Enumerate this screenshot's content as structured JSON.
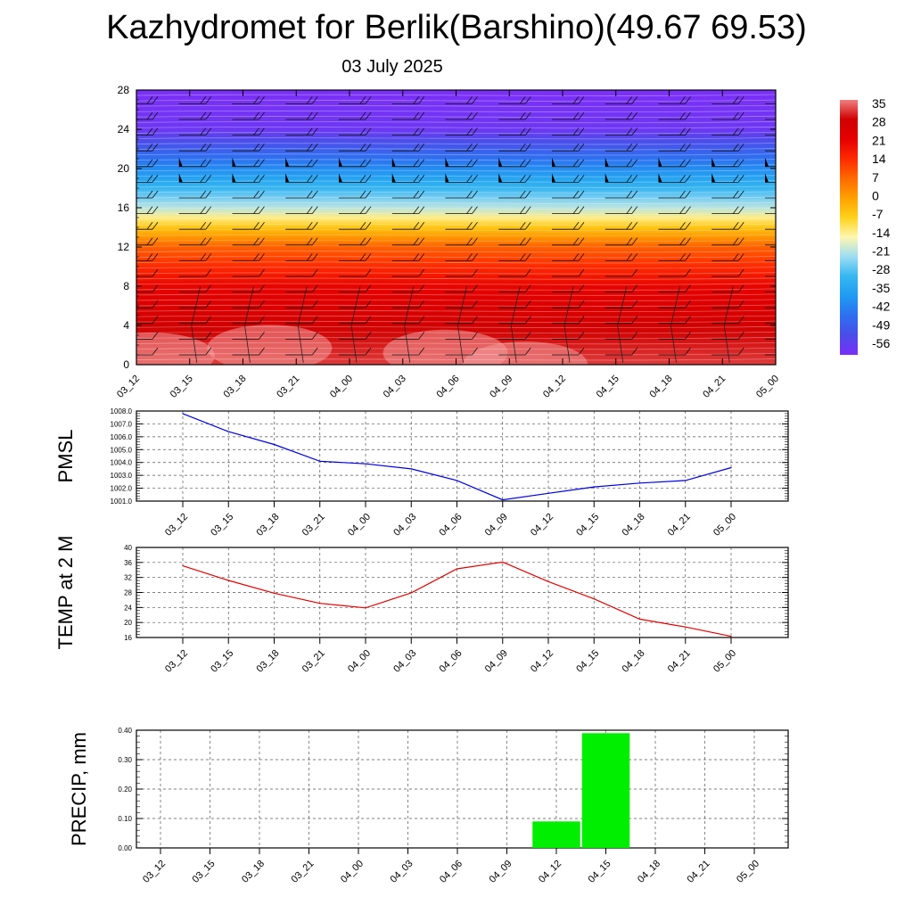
{
  "header": {
    "title": "Kazhydromet for Berlik(Barshino)(49.67 69.53)",
    "date": "03 July 2025"
  },
  "chart_data": [
    {
      "type": "heatmap",
      "name": "cross-section",
      "x": [
        "03_12",
        "03_15",
        "03_18",
        "03_21",
        "04_00",
        "04_03",
        "04_06",
        "04_09",
        "04_12",
        "04_15",
        "04_18",
        "04_21",
        "05_00"
      ],
      "y_ticks": [
        0,
        4,
        8,
        12,
        16,
        20,
        24,
        28
      ],
      "ylim": [
        0,
        28
      ],
      "colorbar": {
        "labels": [
          "35",
          "28",
          "21",
          "14",
          "7",
          "0",
          "-7",
          "-14",
          "-21",
          "-28",
          "-35",
          "-42",
          "-49",
          "-56"
        ],
        "min": -60,
        "max": 38,
        "stops": [
          "#7b2ff7",
          "#4a4de8",
          "#2e6ff0",
          "#1f9bf2",
          "#36b6f0",
          "#9cdcf4",
          "#fff7b0",
          "#ffd11a",
          "#ffa000",
          "#ff6a00",
          "#ff2a00",
          "#e40000",
          "#d00000",
          "#f08080"
        ]
      },
      "profile_levels": [
        0,
        4,
        8,
        12,
        16,
        20,
        24,
        28
      ],
      "profile_temps": [
        34,
        30,
        22,
        9,
        -20,
        -40,
        -58,
        -60
      ]
    },
    {
      "type": "line",
      "name": "pmsl",
      "ylabel": "PMSL",
      "x": [
        "03_12",
        "03_15",
        "03_18",
        "03_21",
        "04_00",
        "04_03",
        "04_06",
        "04_09",
        "04_12",
        "04_15",
        "04_18",
        "04_21",
        "05_00"
      ],
      "y": [
        1007.8,
        1006.4,
        1005.4,
        1004.1,
        1003.9,
        1003.5,
        1002.6,
        1001.1,
        1001.6,
        1002.1,
        1002.4,
        1002.6,
        1003.6
      ],
      "y_ticks": [
        "1001.0",
        "1002.0",
        "1003.0",
        "1004.0",
        "1005.0",
        "1006.0",
        "1007.0",
        "1008.0"
      ],
      "ylim": [
        1001.0,
        1008.0
      ],
      "color": "#0000e0"
    },
    {
      "type": "line",
      "name": "temp",
      "ylabel": "TEMP at 2 M",
      "x": [
        "03_12",
        "03_15",
        "03_18",
        "03_21",
        "04_00",
        "04_03",
        "04_06",
        "04_09",
        "04_12",
        "04_15",
        "04_18",
        "04_21",
        "05_00"
      ],
      "y": [
        35.1,
        31.2,
        27.8,
        25.1,
        23.9,
        27.9,
        34.3,
        36.1,
        30.9,
        26.3,
        20.9,
        18.8,
        16.3
      ],
      "y_ticks": [
        "16",
        "20",
        "24",
        "28",
        "32",
        "36",
        "40"
      ],
      "ylim": [
        16,
        40
      ],
      "color": "#e00000"
    },
    {
      "type": "bar",
      "name": "precip",
      "ylabel": "PRECIP, mm",
      "categories": [
        "03_12",
        "03_15",
        "03_18",
        "03_21",
        "04_00",
        "04_03",
        "04_06",
        "04_09",
        "04_12",
        "04_15",
        "04_18",
        "04_21",
        "05_00"
      ],
      "values": [
        0,
        0,
        0,
        0,
        0,
        0,
        0,
        0,
        0.09,
        0.39,
        0,
        0,
        0
      ],
      "y_ticks": [
        "0.00",
        "0.10",
        "0.20",
        "0.30",
        "0.40"
      ],
      "ylim": [
        0,
        0.4
      ],
      "color": "#00ee00"
    }
  ]
}
